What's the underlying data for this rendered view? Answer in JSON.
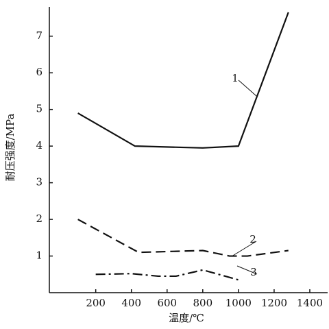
{
  "chart_data": {
    "type": "line",
    "x_label": "温度/℃",
    "y_label": "耐压强度/MPa",
    "xlim": [
      -60,
      1500
    ],
    "ylim": [
      0,
      7.8
    ],
    "xticks": [
      200,
      400,
      600,
      800,
      1000,
      1200,
      1400
    ],
    "yticks": [
      1,
      2,
      3,
      4,
      5,
      6,
      7
    ],
    "grid": false,
    "series": [
      {
        "name": "1",
        "color": "#111111",
        "line_style": "solid",
        "x": [
          100,
          420,
          800,
          1000,
          1280
        ],
        "values": [
          4.9,
          4.0,
          3.95,
          4.0,
          7.65
        ]
      },
      {
        "name": "2",
        "color": "#111111",
        "line_style": "dashed",
        "x": [
          100,
          440,
          800,
          950,
          1050,
          1280
        ],
        "values": [
          2.0,
          1.1,
          1.15,
          1.0,
          1.0,
          1.15
        ]
      },
      {
        "name": "3",
        "color": "#111111",
        "line_style": "dashdot",
        "x": [
          200,
          400,
          550,
          650,
          800,
          1000
        ],
        "values": [
          0.5,
          0.52,
          0.45,
          0.45,
          0.62,
          0.35
        ]
      }
    ]
  }
}
